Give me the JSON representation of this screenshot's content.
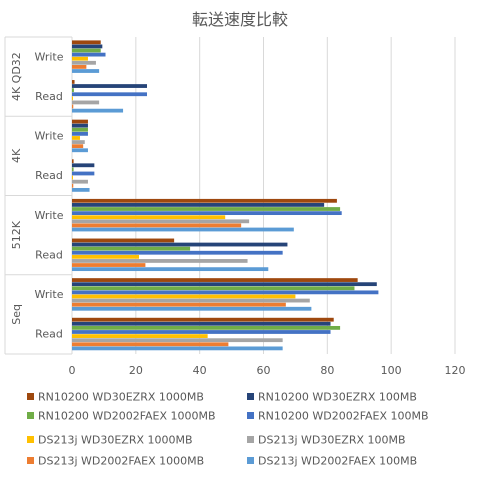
{
  "chart_data": {
    "type": "bar",
    "orientation": "horizontal",
    "title": "転送速度比較",
    "xlim": [
      0,
      120
    ],
    "x_ticks": [
      0,
      20,
      40,
      60,
      80,
      100,
      120
    ],
    "x_tick_labels": [
      "0",
      "20",
      "40",
      "60",
      "80",
      "100",
      "120"
    ],
    "grid": true,
    "legend_position": "bottom",
    "groups": [
      {
        "label": "4K QD32",
        "categories": [
          "Write",
          "Read"
        ]
      },
      {
        "label": "4K",
        "categories": [
          "Write",
          "Read"
        ]
      },
      {
        "label": "512K",
        "categories": [
          "Write",
          "Read"
        ]
      },
      {
        "label": "Seq",
        "categories": [
          "Write",
          "Read"
        ]
      }
    ],
    "series": [
      {
        "name": "RN10200 WD30EZRX 1000MB",
        "color": "#9e480e",
        "values": [
          9,
          0.8,
          5,
          0.5,
          83,
          32,
          89.5,
          82
        ]
      },
      {
        "name": "RN10200 WD30EZRX 100MB",
        "color": "#264478",
        "values": [
          9.5,
          23.5,
          5,
          7,
          79,
          67.5,
          95.5,
          81
        ]
      },
      {
        "name": "RN10200 WD2002FAEX 1000MB",
        "color": "#70ad47",
        "values": [
          9,
          0.6,
          5,
          0.5,
          84,
          37,
          88.5,
          84
        ]
      },
      {
        "name": "RN10200 WD2002FAEX 100MB",
        "color": "#4472c4",
        "values": [
          10.5,
          23.5,
          5,
          7,
          84.5,
          66,
          96,
          81
        ]
      },
      {
        "name": "DS213j WD30EZRX 1000MB",
        "color": "#ffc000",
        "values": [
          5,
          0.3,
          2.5,
          0.3,
          48,
          21,
          70,
          42.5
        ]
      },
      {
        "name": "DS213j WD30EZRX 100MB",
        "color": "#a5a5a5",
        "values": [
          7.5,
          8.5,
          4,
          5,
          55.5,
          55,
          74.5,
          66
        ]
      },
      {
        "name": "DS213j WD2002FAEX 1000MB",
        "color": "#ed7d31",
        "values": [
          4.5,
          0.4,
          3.5,
          0.4,
          53,
          23,
          67,
          49
        ]
      },
      {
        "name": "DS213j WD2002FAEX 100MB",
        "color": "#5b9bd5",
        "values": [
          8.5,
          16,
          5,
          5.5,
          69.5,
          61.5,
          75,
          66
        ]
      }
    ]
  }
}
